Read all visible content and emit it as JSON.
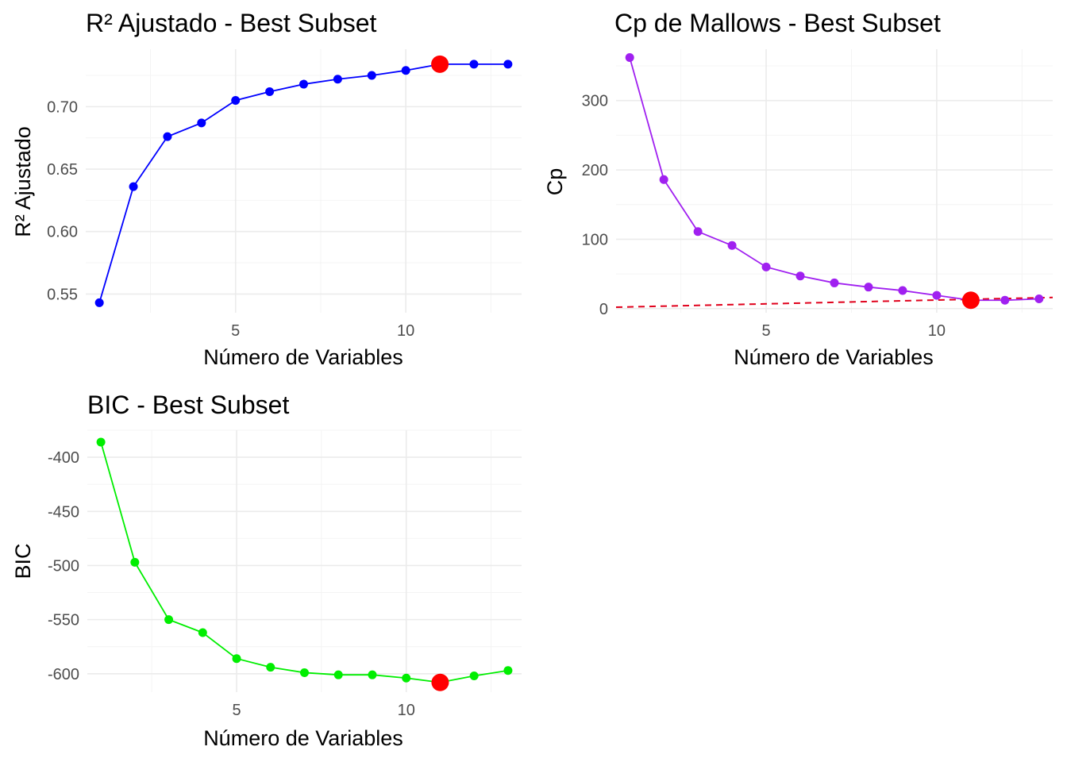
{
  "chart_data": [
    {
      "type": "line",
      "title": "R² Ajustado - Best Subset",
      "xlabel": "Número de Variables",
      "ylabel": "R² Ajustado",
      "x": [
        1,
        2,
        3,
        4,
        5,
        6,
        7,
        8,
        9,
        10,
        11,
        12,
        13
      ],
      "series": [
        {
          "values": [
            0.543,
            0.636,
            0.676,
            0.687,
            0.705,
            0.712,
            0.718,
            0.722,
            0.725,
            0.729,
            0.734,
            0.734,
            0.734
          ]
        }
      ],
      "highlight": {
        "x": 11,
        "y": 0.734,
        "color": "#ff0000"
      },
      "xlim": [
        0.6,
        13.4
      ],
      "ylim": [
        0.535,
        0.746
      ],
      "xticks": [
        5,
        10
      ],
      "yticks": [
        0.55,
        0.6,
        0.65,
        0.7
      ],
      "ytick_labels": [
        "0.55",
        "0.60",
        "0.65",
        "0.70"
      ],
      "line_color": "#0000ff",
      "grid": true
    },
    {
      "type": "line",
      "title": "Cp de Mallows - Best Subset",
      "xlabel": "Número de Variables",
      "ylabel": "Cp",
      "x": [
        1,
        2,
        3,
        4,
        5,
        6,
        7,
        8,
        9,
        10,
        11,
        12,
        13
      ],
      "series": [
        {
          "values": [
            362,
            186,
            111,
            91,
            60,
            47,
            37,
            31,
            26,
            19,
            12,
            12,
            14
          ]
        }
      ],
      "highlight": {
        "x": 11,
        "y": 12,
        "color": "#ff0000"
      },
      "reference_line": {
        "x": [
          0.6,
          13.4
        ],
        "y": [
          2,
          16
        ],
        "color": "#e0001b",
        "style": "dashed"
      },
      "xlim": [
        0.6,
        13.4
      ],
      "ylim": [
        -6,
        374
      ],
      "xticks": [
        5,
        10
      ],
      "yticks": [
        0,
        100,
        200,
        300
      ],
      "ytick_labels": [
        "0",
        "100",
        "200",
        "300"
      ],
      "line_color": "#a020f0",
      "grid": true
    },
    {
      "type": "line",
      "title": "BIC - Best Subset",
      "xlabel": "Número de Variables",
      "ylabel": "BIC",
      "x": [
        1,
        2,
        3,
        4,
        5,
        6,
        7,
        8,
        9,
        10,
        11,
        12,
        13
      ],
      "series": [
        {
          "values": [
            -386,
            -497,
            -550,
            -562,
            -586,
            -594,
            -599,
            -601,
            -601,
            -604,
            -608,
            -602,
            -597
          ]
        }
      ],
      "highlight": {
        "x": 11,
        "y": -608,
        "color": "#ff0000"
      },
      "xlim": [
        0.6,
        13.4
      ],
      "ylim": [
        -617,
        -375
      ],
      "xticks": [
        5,
        10
      ],
      "yticks": [
        -600,
        -550,
        -500,
        -450,
        -400
      ],
      "ytick_labels": [
        "-600",
        "-550",
        "-500",
        "-450",
        "-400"
      ],
      "line_color": "#00ee00",
      "grid": true
    }
  ]
}
